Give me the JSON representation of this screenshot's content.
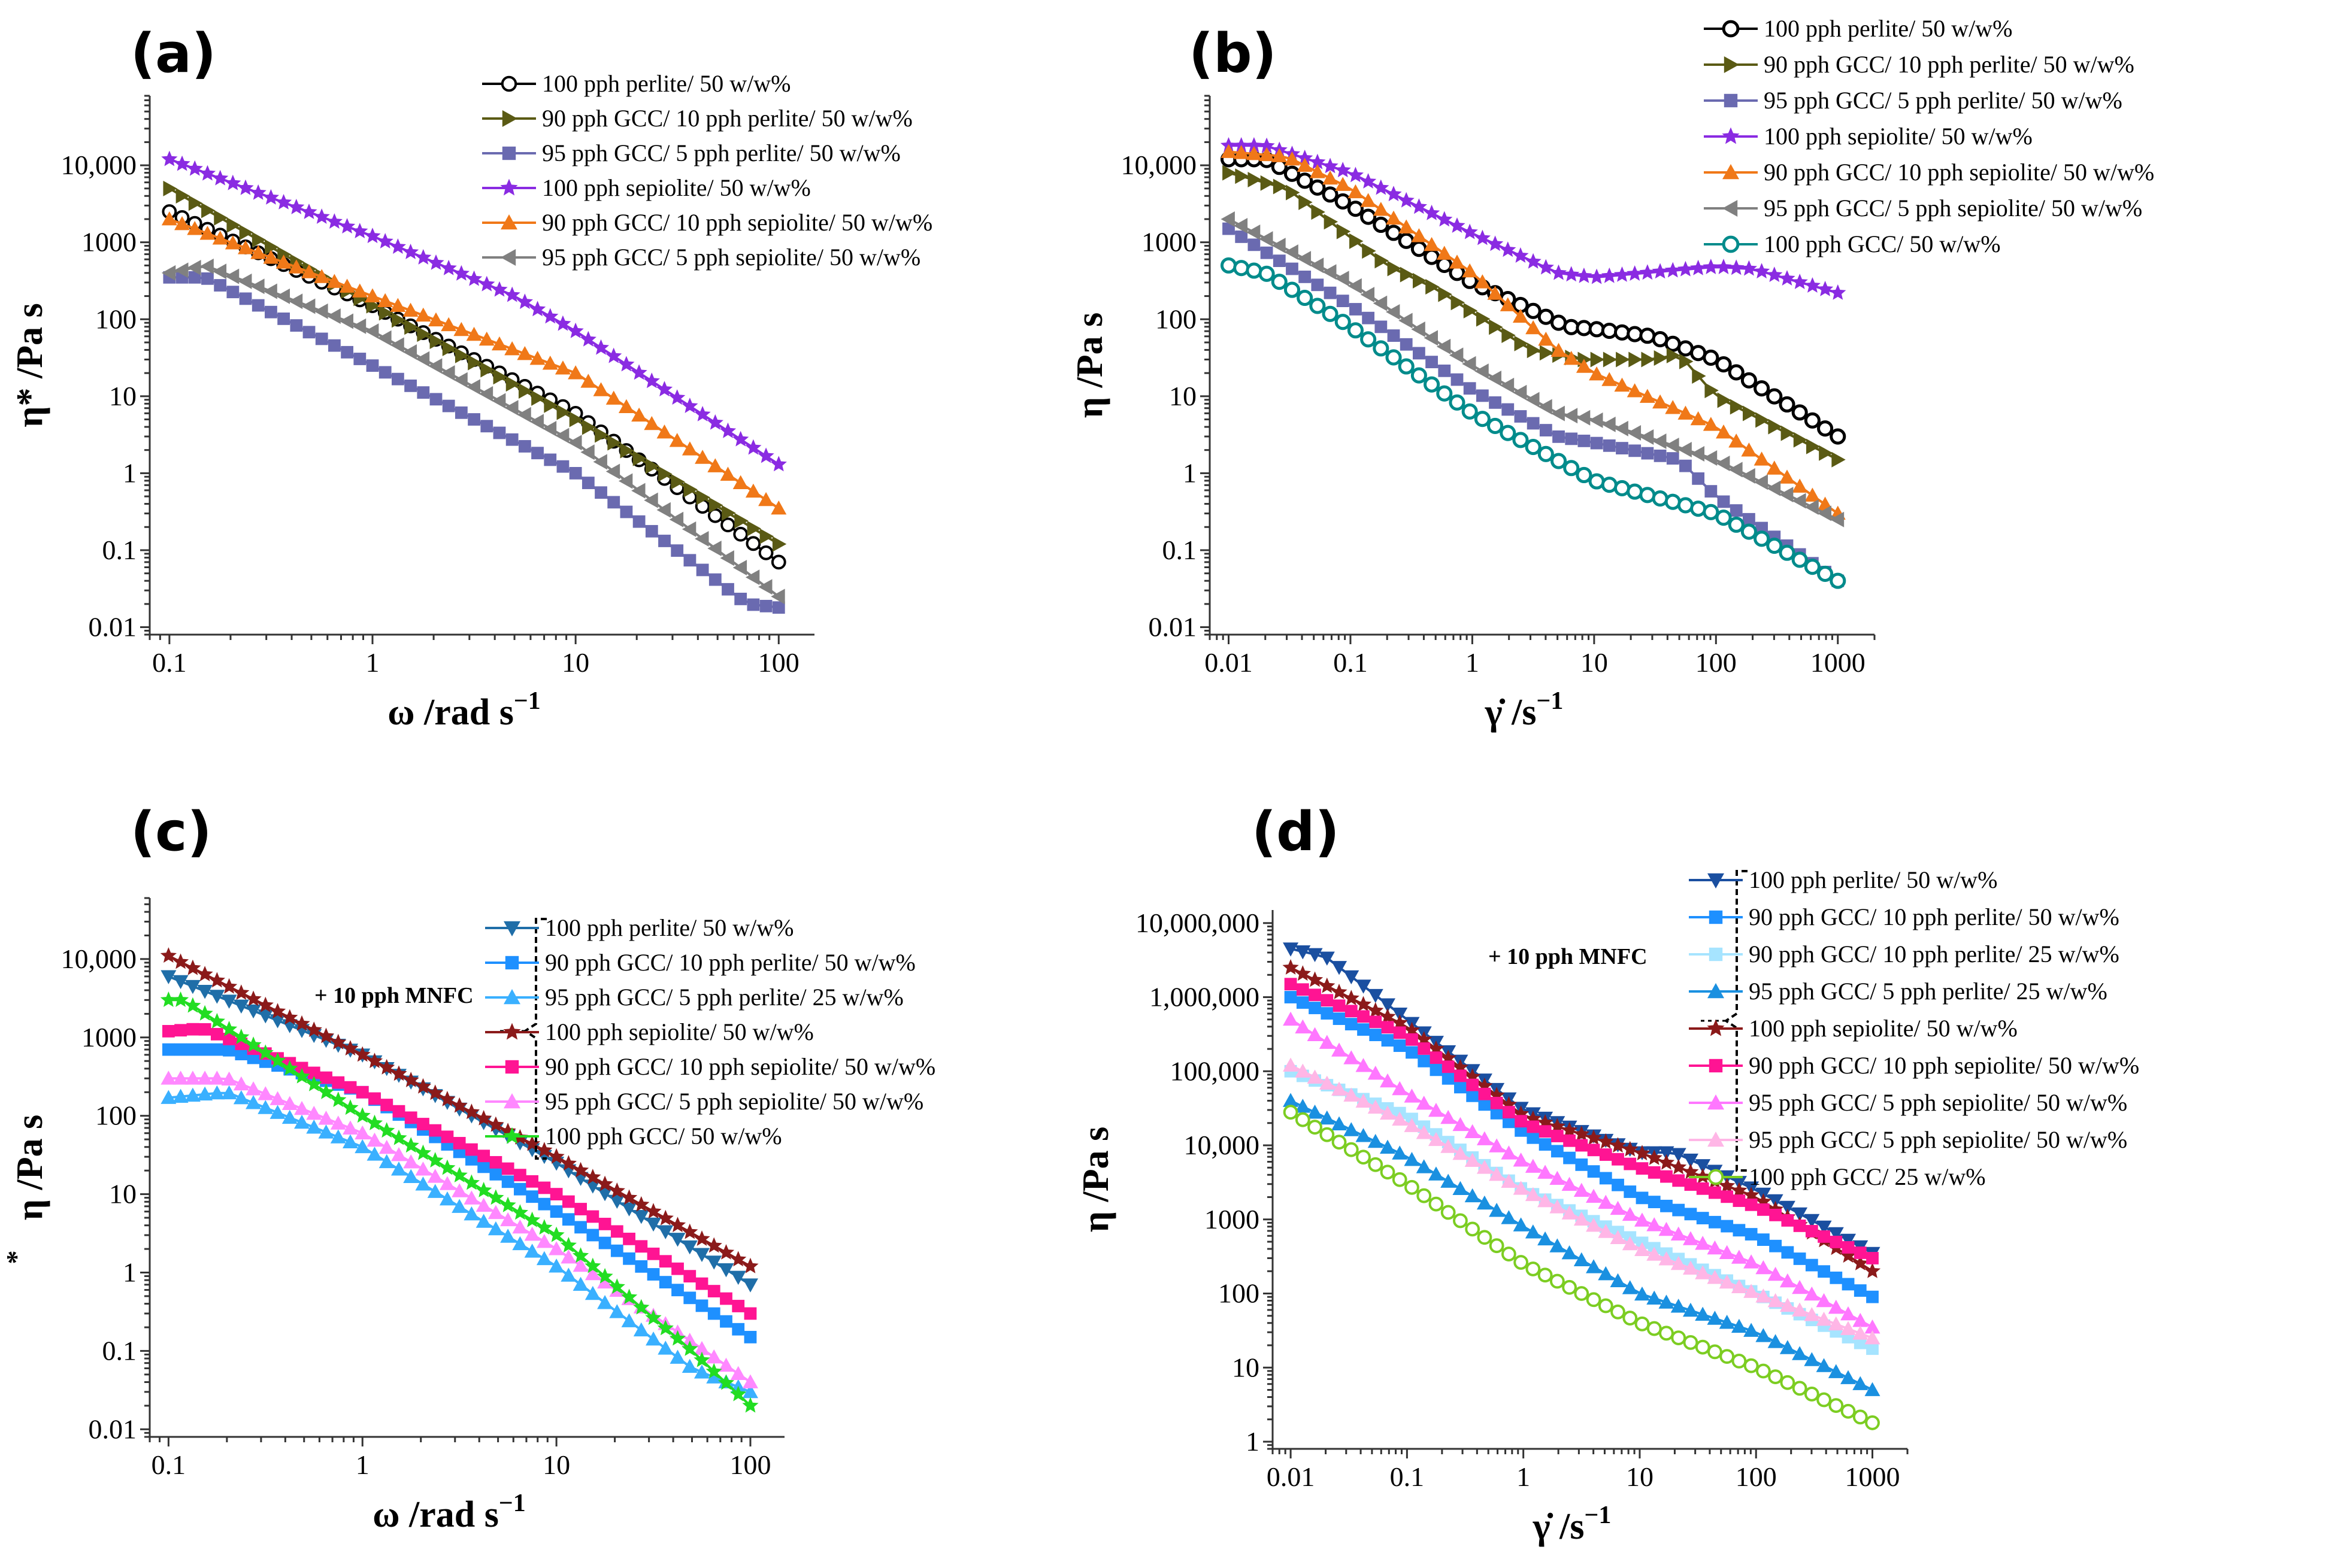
{
  "chart_data": [
    {
      "type": "line",
      "panel": "(a)",
      "xscale": "log",
      "yscale": "log",
      "xlim": [
        0.08,
        150
      ],
      "ylim": [
        0.008,
        80000
      ],
      "xlabel_main": "ω /rad s",
      "xlabel_sup": "−1",
      "ylabel_main": "η* /Pa s",
      "ylabel_sup": "",
      "xticks": [
        {
          "v": 0.1,
          "label": "0.1"
        },
        {
          "v": 1,
          "label": "1"
        },
        {
          "v": 10,
          "label": "10"
        },
        {
          "v": 100,
          "label": "100"
        }
      ],
      "yticks": [
        {
          "v": 0.01,
          "label": "0.01"
        },
        {
          "v": 0.1,
          "label": "0.1"
        },
        {
          "v": 1,
          "label": "1"
        },
        {
          "v": 10,
          "label": "10"
        },
        {
          "v": 100,
          "label": "100"
        },
        {
          "v": 1000,
          "label": "1000"
        },
        {
          "v": 10000,
          "label": "10,000"
        }
      ],
      "legend_position": "top-right",
      "annotation": "",
      "series": [
        {
          "name": "100 pph perlite/ 50 w/w%",
          "color": "#000000",
          "marker": "circle-open",
          "x": [
            0.1,
            1,
            10,
            100
          ],
          "y": [
            2500,
            150,
            6,
            0.07
          ]
        },
        {
          "name": "90 pph GCC/ 10 pph perlite/ 50 w/w%",
          "color": "#5a5a14",
          "marker": "tri-right",
          "x": [
            0.1,
            1,
            10,
            100
          ],
          "y": [
            5000,
            150,
            5,
            0.12
          ]
        },
        {
          "name": "95 pph GCC/ 5 pph perlite/ 50 w/w%",
          "color": "#6a6ab0",
          "marker": "square",
          "x": [
            0.1,
            0.15,
            1,
            10,
            70,
            100
          ],
          "y": [
            350,
            350,
            25,
            1,
            0.02,
            0.018
          ]
        },
        {
          "name": "100 pph sepiolite/ 50 w/w%",
          "color": "#8a2be2",
          "marker": "star",
          "x": [
            0.1,
            1,
            5,
            10,
            100
          ],
          "y": [
            12000,
            1200,
            200,
            70,
            1.3
          ]
        },
        {
          "name": "90 pph GCC/ 10 pph sepiolite/ 50 w/w%",
          "color": "#f07818",
          "marker": "tri-up",
          "x": [
            0.1,
            1,
            10,
            100
          ],
          "y": [
            2000,
            200,
            20,
            0.35
          ]
        },
        {
          "name": "95 pph GCC/ 5 pph sepiolite/ 50 w/w%",
          "color": "#808080",
          "marker": "tri-left",
          "x": [
            0.1,
            0.15,
            1,
            10,
            100
          ],
          "y": [
            400,
            500,
            70,
            2.5,
            0.025
          ]
        }
      ]
    },
    {
      "type": "line",
      "panel": "(b)",
      "xscale": "log",
      "yscale": "log",
      "xlim": [
        0.007,
        2000
      ],
      "ylim": [
        0.008,
        80000
      ],
      "xlabel_main": "γ̇ /s",
      "xlabel_sup": "−1",
      "ylabel_main": "η /Pa s",
      "ylabel_sup": "",
      "xticks": [
        {
          "v": 0.01,
          "label": "0.01"
        },
        {
          "v": 0.1,
          "label": "0.1"
        },
        {
          "v": 1,
          "label": "1"
        },
        {
          "v": 10,
          "label": "10"
        },
        {
          "v": 100,
          "label": "100"
        },
        {
          "v": 1000,
          "label": "1000"
        }
      ],
      "yticks": [
        {
          "v": 0.01,
          "label": "0.01"
        },
        {
          "v": 0.1,
          "label": "0.1"
        },
        {
          "v": 1,
          "label": "1"
        },
        {
          "v": 10,
          "label": "10"
        },
        {
          "v": 100,
          "label": "100"
        },
        {
          "v": 1000,
          "label": "1000"
        },
        {
          "v": 10000,
          "label": "10,000"
        }
      ],
      "legend_position": "top-right",
      "annotation": "",
      "series": [
        {
          "name": "100 pph perlite/ 50 w/w%",
          "color": "#000000",
          "marker": "circle-half",
          "x": [
            0.01,
            0.02,
            0.1,
            1,
            6,
            10,
            30,
            100,
            1000
          ],
          "y": [
            12000,
            12000,
            3000,
            300,
            80,
            75,
            60,
            30,
            3
          ]
        },
        {
          "name": "90 pph GCC/ 10 pph perlite/ 50 w/w%",
          "color": "#5a5a14",
          "marker": "tri-right",
          "x": [
            0.01,
            0.03,
            0.2,
            0.5,
            3,
            8,
            30,
            50,
            100,
            1000
          ],
          "y": [
            8000,
            5000,
            500,
            250,
            40,
            30,
            30,
            35,
            10,
            1.5
          ]
        },
        {
          "name": "95 pph GCC/ 5 pph perlite/ 50 w/w%",
          "color": "#6a6ab0",
          "marker": "square",
          "x": [
            0.01,
            0.1,
            1,
            5,
            10,
            50,
            100,
            1000
          ],
          "y": [
            1500,
            150,
            12,
            3,
            2.5,
            1.5,
            0.5,
            0.04
          ]
        },
        {
          "name": "100 pph sepiolite/ 50 w/w%",
          "color": "#8a2be2",
          "marker": "star",
          "x": [
            0.01,
            0.02,
            0.1,
            1,
            5,
            10,
            100,
            200,
            1000
          ],
          "y": [
            18000,
            18000,
            8000,
            1300,
            400,
            350,
            480,
            450,
            220
          ]
        },
        {
          "name": "90 pph GCC/ 10 pph sepiolite/ 50 w/w%",
          "color": "#f07818",
          "marker": "tri-up",
          "x": [
            0.01,
            0.03,
            0.1,
            1,
            5,
            10,
            100,
            1000
          ],
          "y": [
            15000,
            13000,
            5000,
            400,
            40,
            20,
            4,
            0.3
          ]
        },
        {
          "name": "95 pph GCC/ 5 pph sepiolite/ 50 w/w%",
          "color": "#808080",
          "marker": "tri-left",
          "x": [
            0.01,
            0.1,
            1,
            5,
            10,
            100,
            1000
          ],
          "y": [
            2000,
            300,
            25,
            6,
            5,
            1.5,
            0.25
          ]
        },
        {
          "name": "100 pph GCC/ 50 w/w%",
          "color": "#008b8b",
          "marker": "circle-half",
          "x": [
            0.01,
            0.02,
            0.1,
            1,
            10,
            100,
            1000
          ],
          "y": [
            500,
            400,
            80,
            6,
            0.8,
            0.3,
            0.04
          ]
        }
      ]
    },
    {
      "type": "line",
      "panel": "(c)",
      "xscale": "log",
      "yscale": "log",
      "xlim": [
        0.08,
        150
      ],
      "ylim": [
        0.008,
        60000
      ],
      "xlabel_main": "ω /rad s",
      "xlabel_sup": "−1",
      "ylabel_main": "η /Pa s",
      "ylabel_sup": "*",
      "xticks": [
        {
          "v": 0.1,
          "label": "0.1"
        },
        {
          "v": 1,
          "label": "1"
        },
        {
          "v": 10,
          "label": "10"
        },
        {
          "v": 100,
          "label": "100"
        }
      ],
      "yticks": [
        {
          "v": 0.01,
          "label": "0.01"
        },
        {
          "v": 0.1,
          "label": "0.1"
        },
        {
          "v": 1,
          "label": "1"
        },
        {
          "v": 10,
          "label": "10"
        },
        {
          "v": 100,
          "label": "100"
        },
        {
          "v": 1000,
          "label": "1000"
        },
        {
          "v": 10000,
          "label": "10,000"
        }
      ],
      "legend_position": "top-right",
      "annotation": "+ 10 pph MNFC",
      "series": [
        {
          "name": "100 pph perlite/ 50 w/w%",
          "color": "#1f6ea8",
          "marker": "tri-down",
          "x": [
            0.1,
            1,
            10,
            100
          ],
          "y": [
            6000,
            600,
            25,
            0.7
          ]
        },
        {
          "name": "90 pph GCC/ 10 pph perlite/ 50 w/w%",
          "color": "#1e90ff",
          "marker": "square",
          "x": [
            0.1,
            0.2,
            1,
            10,
            100
          ],
          "y": [
            700,
            700,
            200,
            6,
            0.15
          ]
        },
        {
          "name": "95 pph GCC/ 5 pph perlite/ 25 w/w%",
          "color": "#3ab0ff",
          "marker": "tri-up",
          "x": [
            0.1,
            0.2,
            1,
            10,
            50,
            100
          ],
          "y": [
            170,
            200,
            40,
            1.2,
            0.06,
            0.03
          ]
        },
        {
          "name": "100 pph sepiolite/ 50 w/w%",
          "color": "#8b1a1a",
          "marker": "star",
          "x": [
            0.1,
            1,
            10,
            100
          ],
          "y": [
            11000,
            600,
            30,
            1.2
          ]
        },
        {
          "name": "90 pph GCC/ 10 pph sepiolite/ 50 w/w%",
          "color": "#ff1493",
          "marker": "square",
          "x": [
            0.1,
            0.15,
            1,
            10,
            100
          ],
          "y": [
            1200,
            1300,
            200,
            10,
            0.3
          ]
        },
        {
          "name": "95 pph GCC/ 5 pph sepiolite/ 50 w/w%",
          "color": "#ff88ff",
          "marker": "tri-up",
          "x": [
            0.1,
            0.2,
            1,
            10,
            100
          ],
          "y": [
            300,
            300,
            60,
            2,
            0.04
          ]
        },
        {
          "name": "100 pph GCC/ 50 w/w%",
          "color": "#22dd22",
          "marker": "star",
          "x": [
            0.1,
            0.12,
            1,
            10,
            50,
            100
          ],
          "y": [
            3000,
            3000,
            100,
            3,
            0.1,
            0.02
          ]
        }
      ]
    },
    {
      "type": "line",
      "panel": "(d)",
      "xscale": "log",
      "yscale": "log",
      "xlim": [
        0.007,
        2000
      ],
      "ylim": [
        0.8,
        15000000
      ],
      "xlabel_main": "γ̇ /s",
      "xlabel_sup": "−1",
      "ylabel_main": "η /Pa s",
      "ylabel_sup": "",
      "xticks": [
        {
          "v": 0.01,
          "label": "0.01"
        },
        {
          "v": 0.1,
          "label": "0.1"
        },
        {
          "v": 1,
          "label": "1"
        },
        {
          "v": 10,
          "label": "10"
        },
        {
          "v": 100,
          "label": "100"
        },
        {
          "v": 1000,
          "label": "1000"
        }
      ],
      "yticks": [
        {
          "v": 1,
          "label": "1"
        },
        {
          "v": 10,
          "label": "10"
        },
        {
          "v": 100,
          "label": "100"
        },
        {
          "v": 1000,
          "label": "1000"
        },
        {
          "v": 10000,
          "label": "10,000"
        },
        {
          "v": 100000,
          "label": "100,000"
        },
        {
          "v": 1000000,
          "label": "1,000,000"
        },
        {
          "v": 10000000,
          "label": "10,000,000"
        }
      ],
      "legend_position": "top-right",
      "annotation": "+ 10 pph MNFC",
      "series": [
        {
          "name": "100 pph perlite/ 50 w/w%",
          "color": "#1a4fa0",
          "marker": "tri-down",
          "x": [
            0.01,
            0.02,
            0.1,
            1,
            10,
            20,
            100,
            1000
          ],
          "y": [
            4500000,
            3500000,
            500000,
            30000,
            8000,
            8000,
            2500,
            350
          ]
        },
        {
          "name": "90 pph GCC/ 10 pph perlite/ 50 w/w%",
          "color": "#1e90ff",
          "marker": "square",
          "x": [
            0.01,
            0.1,
            1,
            10,
            100,
            1000
          ],
          "y": [
            1000000,
            200000,
            15000,
            2000,
            600,
            90
          ]
        },
        {
          "name": "90 pph GCC/ 10 pph perlite/ 25 w/w%",
          "color": "#a6e4ff",
          "marker": "square",
          "x": [
            0.01,
            0.1,
            1,
            10,
            100,
            1000
          ],
          "y": [
            100000,
            25000,
            2500,
            500,
            100,
            18
          ]
        },
        {
          "name": "95 pph GCC/ 5 pph perlite/ 25 w/w%",
          "color": "#1a90e0",
          "marker": "tri-up",
          "x": [
            0.01,
            0.1,
            1,
            10,
            100,
            1000
          ],
          "y": [
            40000,
            7000,
            800,
            100,
            30,
            5
          ]
        },
        {
          "name": "100 pph sepiolite/ 50 w/w%",
          "color": "#8b1a1a",
          "marker": "star",
          "x": [
            0.01,
            0.1,
            1,
            10,
            100,
            1000
          ],
          "y": [
            2500000,
            400000,
            25000,
            8000,
            2000,
            200
          ]
        },
        {
          "name": "90 pph GCC/ 10 pph sepiolite/ 50 w/w%",
          "color": "#ff1493",
          "marker": "square",
          "x": [
            0.01,
            0.1,
            1,
            10,
            100,
            1000
          ],
          "y": [
            1500000,
            300000,
            20000,
            5000,
            1500,
            300
          ]
        },
        {
          "name": "95 pph GCC/ 5 pph sepiolite/ 50 w/w%",
          "color": "#ff77ff",
          "marker": "tri-up",
          "x": [
            0.01,
            0.1,
            1,
            10,
            100,
            1000
          ],
          "y": [
            500000,
            50000,
            6000,
            1000,
            250,
            35
          ]
        },
        {
          "name": "95 pph GCC/ 5 pph sepiolite/ 50 w/w%",
          "color": "#ffb6e6",
          "marker": "tri-up",
          "x": [
            0.01,
            0.1,
            1,
            10,
            100,
            1000
          ],
          "y": [
            120000,
            20000,
            2500,
            400,
            100,
            25
          ]
        },
        {
          "name": "100 pph GCC/ 25 w/w%",
          "color": "#7ccd22",
          "marker": "circle-open",
          "x": [
            0.01,
            0.1,
            1,
            10,
            100,
            1000
          ],
          "y": [
            28000,
            3000,
            250,
            40,
            10,
            1.8
          ]
        }
      ]
    }
  ]
}
